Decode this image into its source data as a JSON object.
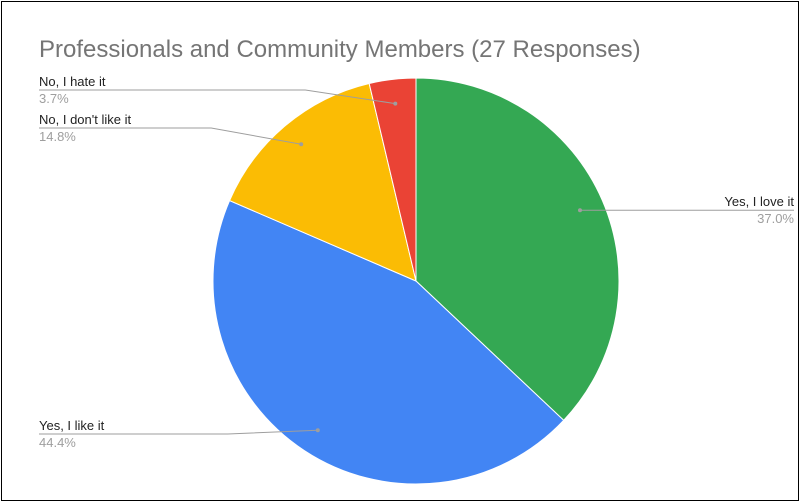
{
  "chart_data": {
    "type": "pie",
    "title": "Professionals and Community Members (27 Responses)",
    "slices": [
      {
        "label": "Yes, I love it",
        "percent_label": "37.0%",
        "value": 37.0,
        "color": "#34A853",
        "label_side": "right"
      },
      {
        "label": "Yes, I like it",
        "percent_label": "44.4%",
        "value": 44.4,
        "color": "#4285F4",
        "label_side": "left"
      },
      {
        "label": "No, I don't like it",
        "percent_label": "14.8%",
        "value": 14.8,
        "color": "#FBBC04",
        "label_side": "left"
      },
      {
        "label": "No, I hate it",
        "percent_label": "3.7%",
        "value": 3.7,
        "color": "#EA4335",
        "label_side": "left"
      }
    ],
    "legend": "none",
    "data_labels": "outside with leader lines"
  }
}
